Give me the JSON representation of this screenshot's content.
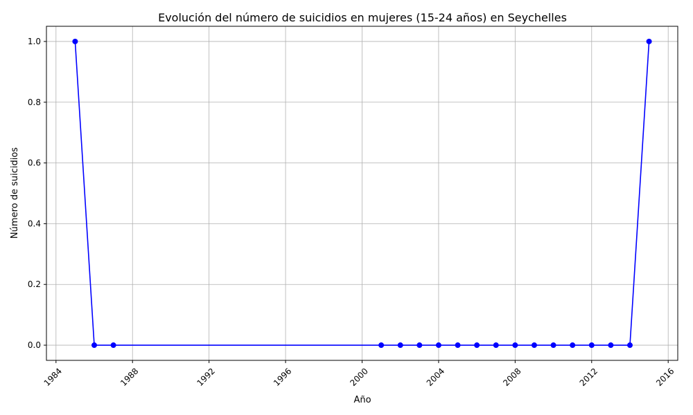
{
  "chart_data": {
    "type": "line",
    "title": "Evolución del número de suicidios en mujeres (15-24 años) en Seychelles",
    "xlabel": "Año",
    "ylabel": "Número de suicidios",
    "x": [
      1985,
      1986,
      1987,
      2001,
      2002,
      2003,
      2004,
      2005,
      2006,
      2007,
      2008,
      2009,
      2010,
      2011,
      2012,
      2013,
      2014,
      2015
    ],
    "series": [
      {
        "values": [
          1,
          0,
          0,
          0,
          0,
          0,
          0,
          0,
          0,
          0,
          0,
          0,
          0,
          0,
          0,
          0,
          0,
          1
        ],
        "color": "#0000ff",
        "marker": "circle"
      }
    ],
    "xlim": [
      1983.5,
      2016.5
    ],
    "ylim": [
      -0.05,
      1.05
    ],
    "xticks": [
      1984,
      1988,
      1992,
      1996,
      2000,
      2004,
      2008,
      2012,
      2016
    ],
    "xtick_labels": [
      "1984",
      "1988",
      "1992",
      "1996",
      "2000",
      "2004",
      "2008",
      "2012",
      "2016"
    ],
    "yticks": [
      0.0,
      0.2,
      0.4,
      0.6,
      0.8,
      1.0
    ],
    "ytick_labels": [
      "0.0",
      "0.2",
      "0.4",
      "0.6",
      "0.8",
      "1.0"
    ],
    "xtick_rotation": 45,
    "grid": true,
    "grid_color": "#b0b0b0",
    "legend": "none"
  }
}
